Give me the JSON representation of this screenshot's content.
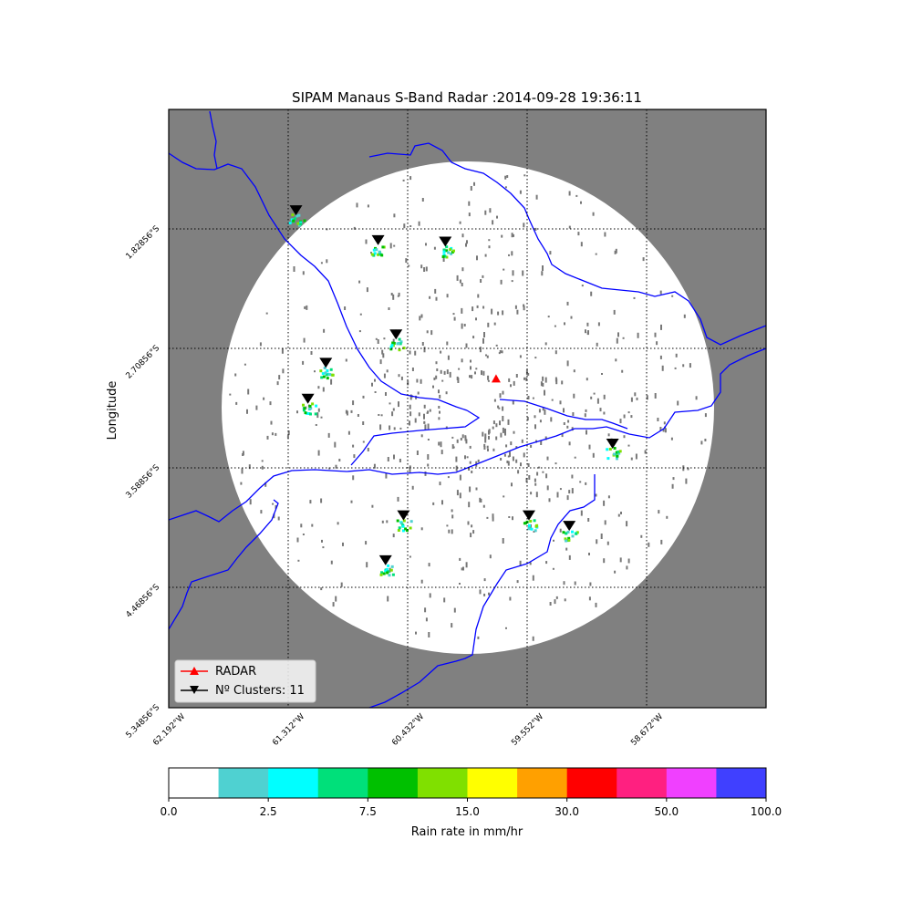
{
  "title": "SIPAM Manaus S-Band Radar :2014-09-28 19:36:11",
  "ylabel": "Longitude",
  "lat_ticks": [
    "1.82856°S",
    "2.70856°S",
    "3.58856°S",
    "4.46856°S",
    "5.34856°S"
  ],
  "lon_ticks": [
    "62.192°W",
    "61.312°W",
    "60.432°W",
    "59.552°W",
    "58.672°W"
  ],
  "legend": {
    "radar_label": "RADAR",
    "clusters_label": "Nº Clusters: 11"
  },
  "colorbar": {
    "label": "Rain rate in mm/hr",
    "tick_labels": [
      "0.0",
      "2.5",
      "7.5",
      "15.0",
      "30.0",
      "50.0",
      "100.0"
    ],
    "colors": [
      "#ffffff",
      "#4fd1d1",
      "#00ffff",
      "#00e07a",
      "#00c000",
      "#80e000",
      "#ffff00",
      "#ffa000",
      "#ff0000",
      "#ff2080",
      "#f040ff",
      "#4040ff"
    ]
  },
  "colors": {
    "background": "#808080",
    "radar_disk": "#ffffff",
    "rivers": "#0000ff",
    "radar_marker": "#ff0000",
    "cluster_marker": "#000000"
  },
  "chart_data": {
    "type": "scatter",
    "title": "SIPAM Manaus S-Band Radar :2014-09-28 19:36:11",
    "ylabel": "Longitude",
    "xlim": [
      -62.192,
      -58.192
    ],
    "ylim": [
      -5.34856,
      -1.34856
    ],
    "radar": {
      "lon": -60.0,
      "lat": -3.15
    },
    "clusters_count": 11,
    "clusters": [
      {
        "lon": -61.34,
        "lat": -2.02
      },
      {
        "lon": -60.79,
        "lat": -2.22
      },
      {
        "lon": -60.34,
        "lat": -2.23
      },
      {
        "lon": -60.67,
        "lat": -2.85
      },
      {
        "lon": -61.14,
        "lat": -3.04
      },
      {
        "lon": -61.26,
        "lat": -3.28
      },
      {
        "lon": -59.22,
        "lat": -3.58
      },
      {
        "lon": -60.62,
        "lat": -4.06
      },
      {
        "lon": -59.78,
        "lat": -4.06
      },
      {
        "lon": -59.51,
        "lat": -4.13
      },
      {
        "lon": -60.74,
        "lat": -4.36
      }
    ],
    "colorbar_bounds": [
      0.0,
      2.5,
      7.5,
      15.0,
      30.0,
      50.0,
      100.0
    ]
  }
}
